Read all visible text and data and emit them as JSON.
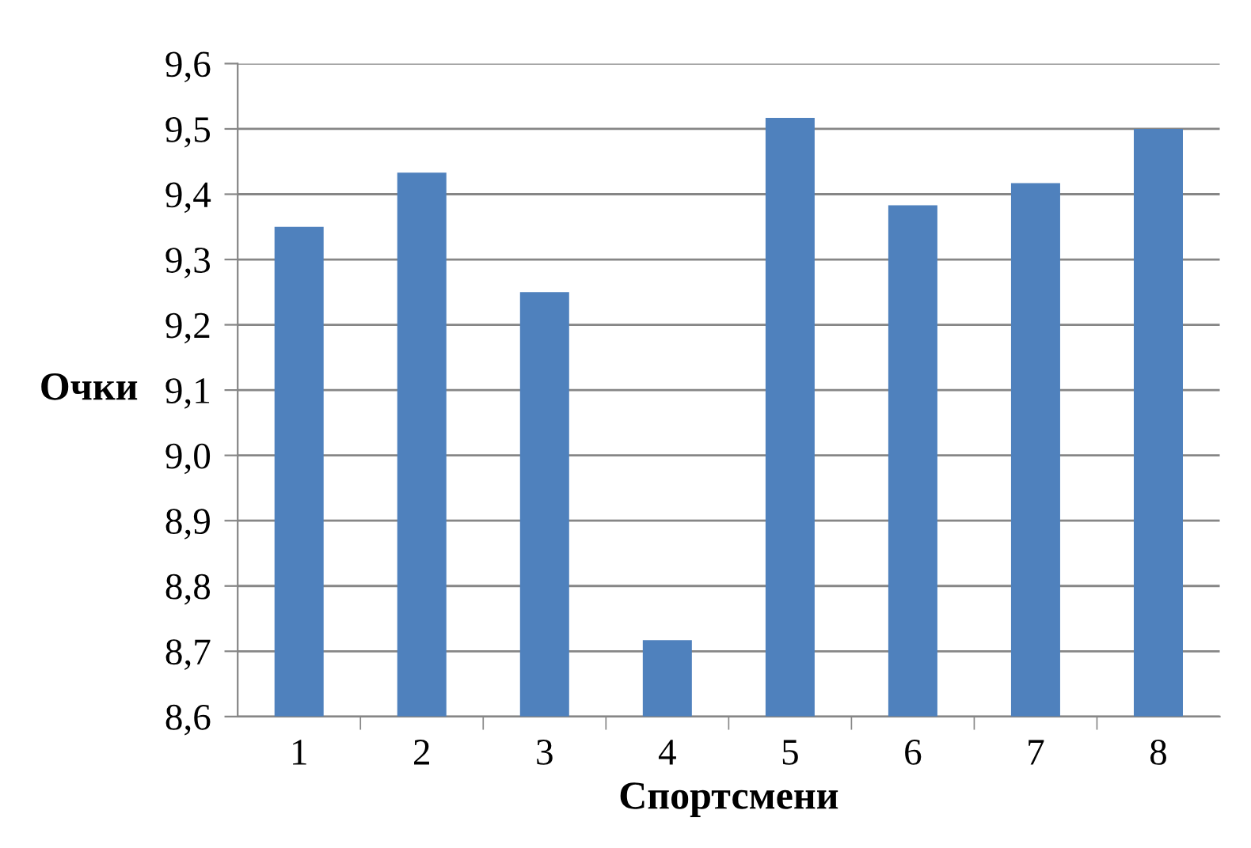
{
  "chart_data": {
    "type": "bar",
    "xlabel": "Спортсмени",
    "ylabel": "Очки",
    "categories": [
      "1",
      "2",
      "3",
      "4",
      "5",
      "6",
      "7",
      "8"
    ],
    "values": [
      9.35,
      9.433,
      9.25,
      8.717,
      9.517,
      9.383,
      9.417,
      9.5
    ],
    "color": "#4f81bd",
    "ylim": [
      8.6,
      9.6
    ],
    "yticks": [
      {
        "value": 8.6,
        "label": "8,6"
      },
      {
        "value": 8.7,
        "label": "8,7"
      },
      {
        "value": 8.8,
        "label": "8,8"
      },
      {
        "value": 8.9,
        "label": "8,9"
      },
      {
        "value": 9.0,
        "label": "9,0"
      },
      {
        "value": 9.1,
        "label": "9,1"
      },
      {
        "value": 9.2,
        "label": "9,2"
      },
      {
        "value": 9.3,
        "label": "9,3"
      },
      {
        "value": 9.4,
        "label": "9,4"
      },
      {
        "value": 9.5,
        "label": "9,5"
      },
      {
        "value": 9.6,
        "label": "9,6"
      }
    ],
    "grid": "y",
    "legend": false
  }
}
